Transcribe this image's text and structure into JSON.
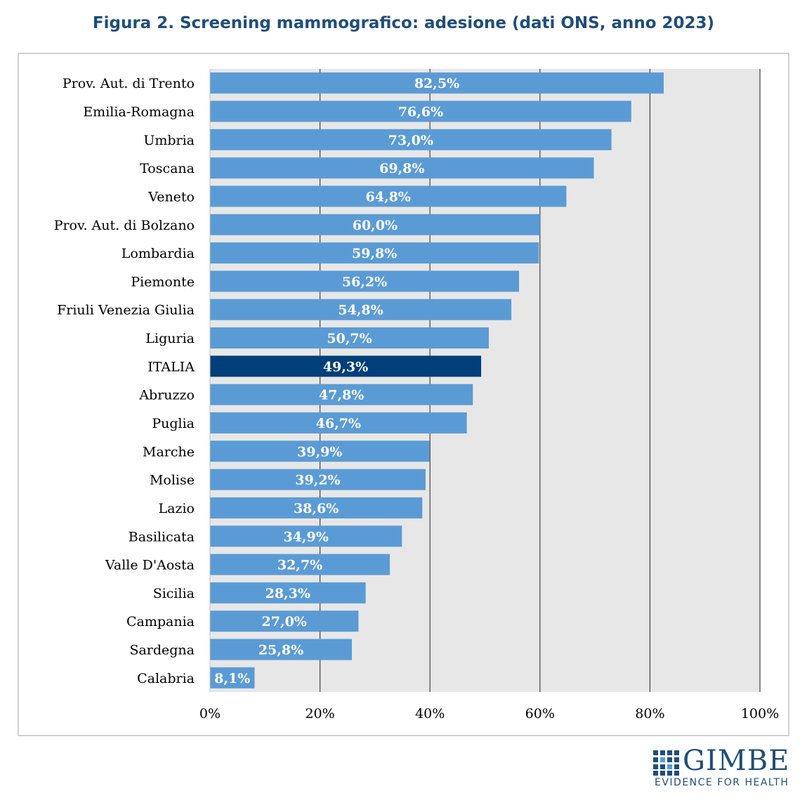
{
  "title": "Figura 2. Screening mammografico: adesione (dati ONS, anno 2023)",
  "colors": {
    "bar": "#5b9bd5",
    "highlight": "#003f7a",
    "plot_bg": "#e7e7e7",
    "grid": "#404040",
    "brand": "#1f4e79"
  },
  "chart_data": {
    "type": "bar",
    "orientation": "horizontal",
    "categories": [
      "Prov. Aut. di Trento",
      "Emilia-Romagna",
      "Umbria",
      "Toscana",
      "Veneto",
      "Prov. Aut. di Bolzano",
      "Lombardia",
      "Piemonte",
      "Friuli Venezia Giulia",
      "Liguria",
      "ITALIA",
      "Abruzzo",
      "Puglia",
      "Marche",
      "Molise",
      "Lazio",
      "Basilicata",
      "Valle D'Aosta",
      "Sicilia",
      "Campania",
      "Sardegna",
      "Calabria"
    ],
    "values": [
      82.5,
      76.6,
      73.0,
      69.8,
      64.8,
      60.0,
      59.8,
      56.2,
      54.8,
      50.7,
      49.3,
      47.8,
      46.7,
      39.9,
      39.2,
      38.6,
      34.9,
      32.7,
      28.3,
      27.0,
      25.8,
      8.1
    ],
    "data_labels": [
      "82,5%",
      "76,6%",
      "73,0%",
      "69,8%",
      "64,8%",
      "60,0%",
      "59,8%",
      "56,2%",
      "54,8%",
      "50,7%",
      "49,3%",
      "47,8%",
      "46,7%",
      "39,9%",
      "39,2%",
      "38,6%",
      "34,9%",
      "32,7%",
      "28,3%",
      "27,0%",
      "25,8%",
      "8,1%"
    ],
    "highlight_category": "ITALIA",
    "xlim": [
      0,
      100
    ],
    "xticks": [
      0,
      20,
      40,
      60,
      80,
      100
    ],
    "xtick_labels": [
      "0%",
      "20%",
      "40%",
      "60%",
      "80%",
      "100%"
    ],
    "xlabel": "",
    "ylabel": "",
    "grid": true
  },
  "logo": {
    "name": "GIMBE",
    "tagline": "EVIDENCE FOR HEALTH"
  }
}
